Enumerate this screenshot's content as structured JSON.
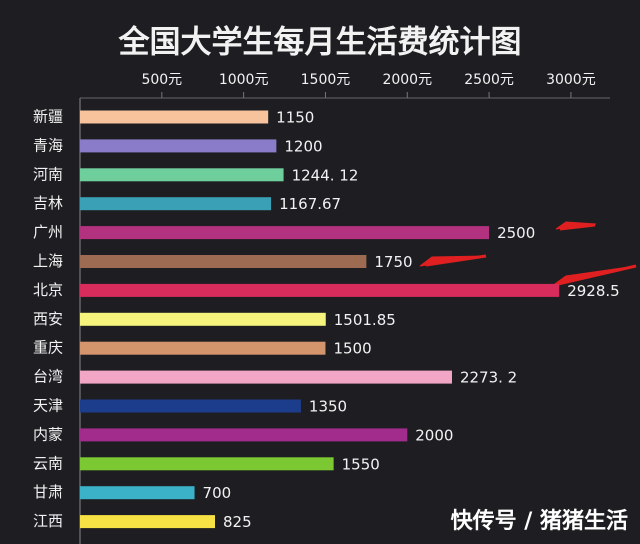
{
  "chart_data": {
    "type": "hbar",
    "title": "全国大学生每月生活费统计图",
    "categories": [
      "新疆",
      "青海",
      "河南",
      "吉林",
      "广州",
      "上海",
      "北京",
      "西安",
      "重庆",
      "台湾",
      "天津",
      "内蒙",
      "云南",
      "甘肃",
      "江西"
    ],
    "values": [
      1150,
      1200,
      1244.12,
      1167.67,
      2500,
      1750,
      2928.5,
      1501.85,
      1500,
      2273.2,
      1350,
      2000,
      1550,
      700,
      825
    ],
    "value_labels": [
      "1150",
      "1200",
      "1244. 12",
      "1167.67",
      "2500",
      "1750",
      "2928.5",
      "1501.85",
      "1500",
      "2273. 2",
      "1350",
      "2000",
      "1550",
      "700",
      "825"
    ],
    "colors": [
      "#f7c39c",
      "#8a7cc8",
      "#6fcf9c",
      "#3aa0b6",
      "#b3327f",
      "#9c6b52",
      "#d82c5c",
      "#f6f47c",
      "#d4956c",
      "#f2a6c6",
      "#1c3c8c",
      "#a22c8c",
      "#7cc832",
      "#3cb2c8",
      "#f6e244"
    ],
    "xlim": [
      0,
      3300
    ],
    "xticks": [
      {
        "value": 500,
        "label": "500元"
      },
      {
        "value": 1000,
        "label": "1000元"
      },
      {
        "value": 1500,
        "label": "1500元"
      },
      {
        "value": 2000,
        "label": "2000元"
      },
      {
        "value": 2500,
        "label": "2500元"
      },
      {
        "value": 3000,
        "label": "3000元"
      }
    ],
    "grid": false,
    "watermark": "快传号 / 猪猪生活"
  }
}
